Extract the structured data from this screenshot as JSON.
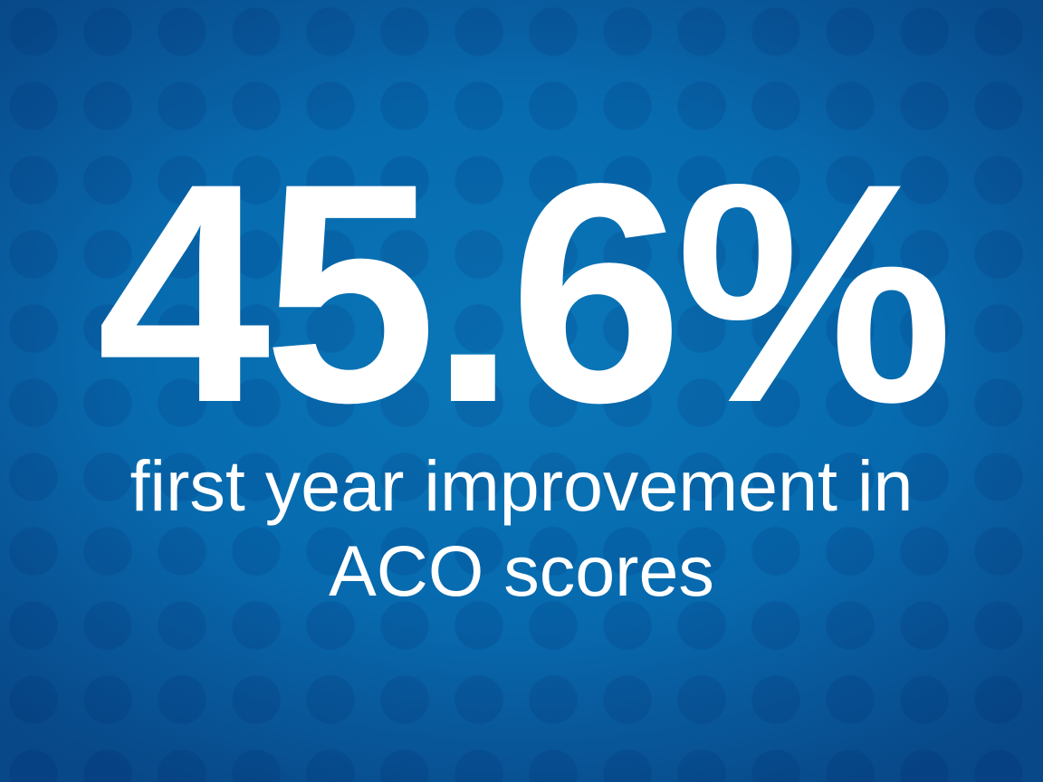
{
  "slide": {
    "stat": "45.6%",
    "caption_lines": [
      "first year improvement in",
      "ACO scores"
    ]
  },
  "colors": {
    "background": "#076cb0",
    "text": "#ffffff"
  }
}
